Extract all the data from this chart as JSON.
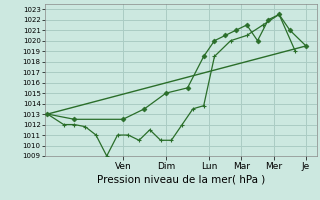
{
  "xlabel": "Pression niveau de la mer( hPa )",
  "bg_color": "#cce8e0",
  "grid_color": "#aaccc4",
  "line_color": "#2a6e2a",
  "ylim": [
    1009,
    1023.5
  ],
  "yticks": [
    1009,
    1010,
    1011,
    1012,
    1013,
    1014,
    1015,
    1016,
    1017,
    1018,
    1019,
    1020,
    1021,
    1022,
    1023
  ],
  "x_day_labels": [
    "Ven",
    "Dim",
    "Lun",
    "Mar",
    "Mer",
    "Je"
  ],
  "x_day_positions": [
    0.28,
    0.44,
    0.6,
    0.72,
    0.84,
    0.96
  ],
  "series_zigzag": {
    "x": [
      0.0,
      0.06,
      0.1,
      0.14,
      0.18,
      0.22,
      0.26,
      0.3,
      0.34,
      0.38,
      0.42,
      0.46,
      0.5,
      0.54,
      0.58,
      0.62,
      0.68,
      0.74,
      0.8,
      0.86,
      0.92
    ],
    "y": [
      1013.0,
      1012.0,
      1012.0,
      1011.8,
      1011.0,
      1009.0,
      1011.0,
      1011.0,
      1010.5,
      1011.5,
      1010.5,
      1010.5,
      1012.0,
      1013.5,
      1013.8,
      1018.5,
      1020.0,
      1020.5,
      1021.5,
      1022.5,
      1019.0
    ]
  },
  "series_smooth": {
    "x": [
      0.0,
      0.1,
      0.28,
      0.36,
      0.44,
      0.52,
      0.58,
      0.62,
      0.66,
      0.7,
      0.74,
      0.78,
      0.82,
      0.86,
      0.9,
      0.96
    ],
    "y": [
      1013.0,
      1012.5,
      1012.5,
      1013.5,
      1015.0,
      1015.5,
      1018.5,
      1020.0,
      1020.5,
      1021.0,
      1021.5,
      1020.0,
      1022.0,
      1022.5,
      1021.0,
      1019.5
    ]
  },
  "series_linear": {
    "x": [
      0.0,
      0.96
    ],
    "y": [
      1013.0,
      1019.5
    ]
  },
  "xlim": [
    -0.01,
    1.0
  ]
}
